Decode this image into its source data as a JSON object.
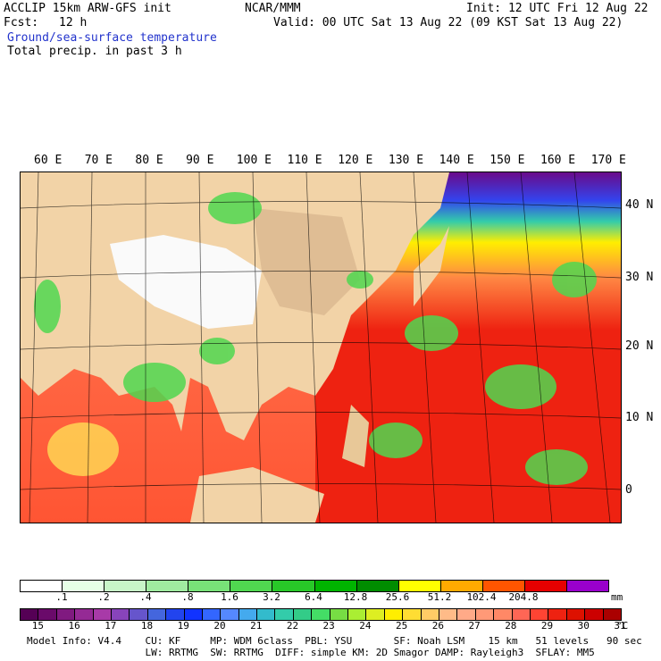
{
  "header": {
    "title": "ACCLIP 15km ARW-GFS init",
    "center": "NCAR/MMM",
    "init": "Init: 12 UTC Fri 12 Aug 22",
    "fcst_label": "Fcst:",
    "fcst_value": "12 h",
    "valid": "Valid: 00 UTC Sat 13 Aug 22 (09 KST Sat 13 Aug 22)",
    "field1": "Ground/sea-surface temperature",
    "field2": "Total precip. in past 3 h"
  },
  "map": {
    "longitudes": [
      "60 E",
      "70 E",
      "80 E",
      "90 E",
      "100 E",
      "110 E",
      "120 E",
      "130 E",
      "140 E",
      "150 E",
      "160 E",
      "170 E"
    ],
    "latitudes": [
      "40 N",
      "30 N",
      "20 N",
      "10 N",
      "0"
    ]
  },
  "precip_scale": {
    "labels": [
      ".1",
      ".2",
      ".4",
      ".8",
      "1.6",
      "3.2",
      "6.4",
      "12.8",
      "25.6",
      "51.2",
      "102.4",
      "204.8"
    ],
    "unit": "mm",
    "colors": [
      "#ffffff",
      "#e6ffe6",
      "#c8f5c8",
      "#a0eba0",
      "#78e178",
      "#50d750",
      "#28c828",
      "#00b400",
      "#008c00",
      "#ffff00",
      "#ffaa00",
      "#ff5500",
      "#e60000",
      "#9900cc"
    ]
  },
  "temp_scale": {
    "labels": [
      "15",
      "16",
      "17",
      "18",
      "19",
      "20",
      "21",
      "22",
      "23",
      "24",
      "25",
      "26",
      "27",
      "28",
      "29",
      "30",
      "31"
    ],
    "unit": "°C",
    "colors": [
      "#550055",
      "#6a0a6a",
      "#801a80",
      "#952a95",
      "#a83aa8",
      "#8844bb",
      "#6655cc",
      "#4466dd",
      "#2244ee",
      "#1133ff",
      "#3366ff",
      "#5588ff",
      "#44aaee",
      "#33bbcc",
      "#33ccaa",
      "#33cc88",
      "#44dd66",
      "#77dd44",
      "#aaee33",
      "#ddee22",
      "#ffee00",
      "#ffdd33",
      "#ffcc66",
      "#ffbb88",
      "#ffaa88",
      "#ff9977",
      "#ff8866",
      "#ff6655",
      "#ff4433",
      "#ee2211",
      "#dd1100",
      "#cc0000",
      "#aa0000"
    ]
  },
  "footer": {
    "line1": "Model Info: V4.4    CU: KF     MP: WDM 6class  PBL: YSU       SF: Noah LSM    15 km   51 levels   90 sec",
    "line2": "                    LW: RRTMG  SW: RRTMG  DIFF: simple KM: 2D Smagor DAMP: Rayleigh3  SFLAY: MM5"
  }
}
